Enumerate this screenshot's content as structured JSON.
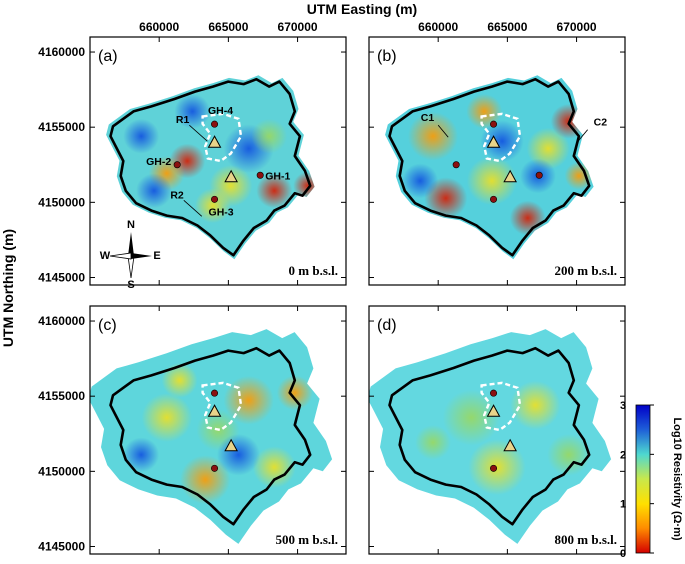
{
  "figure": {
    "x_axis_title": "UTM Easting (m)",
    "y_axis_title": "UTM Northing (m)",
    "x_ticks": [
      660000,
      665000,
      670000
    ],
    "y_ticks": [
      4145000,
      4150000,
      4155000,
      4160000
    ],
    "x_ticks_text": [
      "660000",
      "665000",
      "670000"
    ],
    "y_ticks_text": [
      "4145000",
      "4150000",
      "4155000",
      "4160000"
    ],
    "extent": {
      "easting": [
        655000,
        673500
      ],
      "northing": [
        4144500,
        4161000
      ]
    }
  },
  "panels": [
    {
      "label": "(a)",
      "depth": "0 m b.s.l."
    },
    {
      "label": "(b)",
      "depth": "200 m b.s.l."
    },
    {
      "label": "(c)",
      "depth": "500 m b.s.l."
    },
    {
      "label": "(d)",
      "depth": "800 m b.s.l."
    }
  ],
  "annotations": {
    "wells": [
      {
        "name": "GH-1",
        "e": 667300,
        "n": 4151800
      },
      {
        "name": "GH-2",
        "e": 661300,
        "n": 4152500
      },
      {
        "name": "GH-3",
        "e": 664000,
        "n": 4150200
      },
      {
        "name": "GH-4",
        "e": 664000,
        "n": 4155200
      }
    ],
    "resistors": [
      {
        "name": "R1",
        "e": 662900,
        "n": 4154600
      },
      {
        "name": "R2",
        "e": 662500,
        "n": 4149600
      }
    ],
    "conductors": [
      {
        "name": "C1",
        "e": 660000,
        "n": 4155000
      },
      {
        "name": "C2",
        "e": 670800,
        "n": 4154700
      }
    ],
    "triangles": [
      {
        "e": 664000,
        "n": 4154000
      },
      {
        "e": 665200,
        "n": 4151700
      }
    ]
  },
  "compass": {
    "n": "N",
    "s": "S",
    "e": "E",
    "w": "W"
  },
  "colorbar": {
    "title": "Log10 Resistivity (Ω·m)",
    "min": 0,
    "max": 3,
    "ticks": [
      "0",
      "1",
      "2",
      "3"
    ],
    "colors": [
      "#d40000",
      "#ff8c00",
      "#ffe000",
      "#c8e84c",
      "#4ed8d0",
      "#1e5fd8",
      "#0000c8"
    ]
  }
}
